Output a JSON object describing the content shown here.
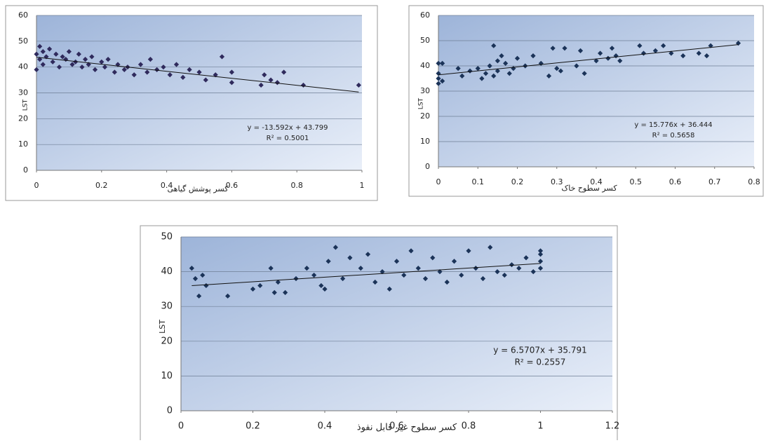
{
  "chart_data": [
    {
      "type": "scatter",
      "x_label": "کسر پوشش گیاهی",
      "y_label": "LST",
      "color": "#2f2a5c",
      "equation": "y = -13.592x + 43.799",
      "r2": "R² = 0.5001",
      "trendline": {
        "slope": -13.592,
        "intercept": 43.799
      },
      "xlim": [
        0,
        1
      ],
      "xticks": [
        0,
        0.2,
        0.4,
        0.6,
        0.8,
        1
      ],
      "ylim": [
        0,
        60
      ],
      "yticks": [
        0,
        10,
        20,
        30,
        40,
        50,
        60
      ],
      "grid": true,
      "x": [
        0,
        0,
        0.01,
        0.01,
        0.02,
        0.02,
        0.03,
        0.04,
        0.05,
        0.06,
        0.07,
        0.08,
        0.09,
        0.1,
        0.11,
        0.12,
        0.13,
        0.14,
        0.15,
        0.16,
        0.17,
        0.18,
        0.2,
        0.21,
        0.22,
        0.24,
        0.25,
        0.27,
        0.28,
        0.3,
        0.32,
        0.34,
        0.35,
        0.37,
        0.39,
        0.41,
        0.43,
        0.45,
        0.47,
        0.5,
        0.52,
        0.55,
        0.57,
        0.6,
        0.6,
        0.69,
        0.7,
        0.72,
        0.74,
        0.76,
        0.82,
        0.99
      ],
      "y": [
        45,
        39,
        48,
        43,
        46,
        41,
        44,
        47,
        42,
        45,
        40,
        44,
        43,
        46,
        41,
        42,
        45,
        40,
        43,
        41,
        44,
        39,
        42,
        40,
        43,
        38,
        41,
        39,
        40,
        37,
        41,
        38,
        43,
        39,
        40,
        37,
        41,
        36,
        39,
        38,
        35,
        37,
        44,
        38,
        34,
        33,
        37,
        35,
        34,
        38,
        33,
        33
      ]
    },
    {
      "type": "scatter",
      "x_label": "کسر سطوح خاک",
      "y_label": "LST",
      "color": "#1b3358",
      "equation": "y = 15.776x + 36.444",
      "r2": "R² = 0.5658",
      "trendline": {
        "slope": 15.776,
        "intercept": 36.444
      },
      "xlim": [
        0,
        0.8
      ],
      "xticks": [
        0,
        0.1,
        0.2,
        0.3,
        0.4,
        0.5,
        0.6,
        0.7,
        0.8
      ],
      "ylim": [
        0,
        60
      ],
      "yticks": [
        0,
        10,
        20,
        30,
        40,
        50,
        60
      ],
      "grid": true,
      "x": [
        0,
        0,
        0,
        0,
        0.01,
        0.01,
        0.05,
        0.06,
        0.08,
        0.1,
        0.11,
        0.12,
        0.13,
        0.14,
        0.14,
        0.15,
        0.15,
        0.16,
        0.17,
        0.18,
        0.19,
        0.2,
        0.22,
        0.24,
        0.26,
        0.28,
        0.29,
        0.3,
        0.31,
        0.32,
        0.35,
        0.36,
        0.37,
        0.4,
        0.41,
        0.43,
        0.44,
        0.45,
        0.46,
        0.51,
        0.52,
        0.55,
        0.57,
        0.59,
        0.62,
        0.66,
        0.68,
        0.69,
        0.76
      ],
      "y": [
        33,
        35,
        37,
        41,
        34,
        41,
        39,
        36,
        38,
        39,
        35,
        37,
        40,
        48,
        36,
        42,
        38,
        44,
        41,
        37,
        39,
        43,
        40,
        44,
        41,
        36,
        47,
        39,
        38,
        47,
        40,
        46,
        37,
        42,
        45,
        43,
        47,
        44,
        42,
        48,
        45,
        46,
        48,
        45,
        44,
        45,
        44,
        48,
        49
      ]
    },
    {
      "type": "scatter",
      "x_label": "کسر سطوح غیر قابل نفوذ",
      "y_label": "LST",
      "color": "#1b3358",
      "equation": "y = 6.5707x + 35.791",
      "r2": "R² = 0.2557",
      "trendline": {
        "slope": 6.5707,
        "intercept": 35.791
      },
      "xlim": [
        0,
        1.2
      ],
      "xticks": [
        0,
        0.2,
        0.4,
        0.6,
        0.8,
        1,
        1.2
      ],
      "ylim": [
        0,
        50
      ],
      "yticks": [
        0,
        10,
        20,
        30,
        40,
        50
      ],
      "grid": true,
      "x": [
        0.03,
        0.04,
        0.05,
        0.06,
        0.07,
        0.13,
        0.2,
        0.22,
        0.25,
        0.26,
        0.27,
        0.29,
        0.32,
        0.35,
        0.37,
        0.39,
        0.4,
        0.41,
        0.43,
        0.45,
        0.47,
        0.5,
        0.52,
        0.54,
        0.56,
        0.58,
        0.6,
        0.62,
        0.64,
        0.66,
        0.68,
        0.7,
        0.72,
        0.74,
        0.76,
        0.78,
        0.8,
        0.82,
        0.84,
        0.86,
        0.88,
        0.9,
        0.92,
        0.94,
        0.96,
        0.98,
        1,
        1,
        1,
        1
      ],
      "y": [
        41,
        38,
        33,
        39,
        36,
        33,
        35,
        36,
        41,
        34,
        37,
        34,
        38,
        41,
        39,
        36,
        35,
        43,
        47,
        38,
        44,
        41,
        45,
        37,
        40,
        35,
        43,
        39,
        46,
        41,
        38,
        44,
        40,
        37,
        43,
        39,
        46,
        41,
        38,
        47,
        40,
        39,
        42,
        41,
        44,
        40,
        46,
        43,
        41,
        45
      ]
    }
  ]
}
